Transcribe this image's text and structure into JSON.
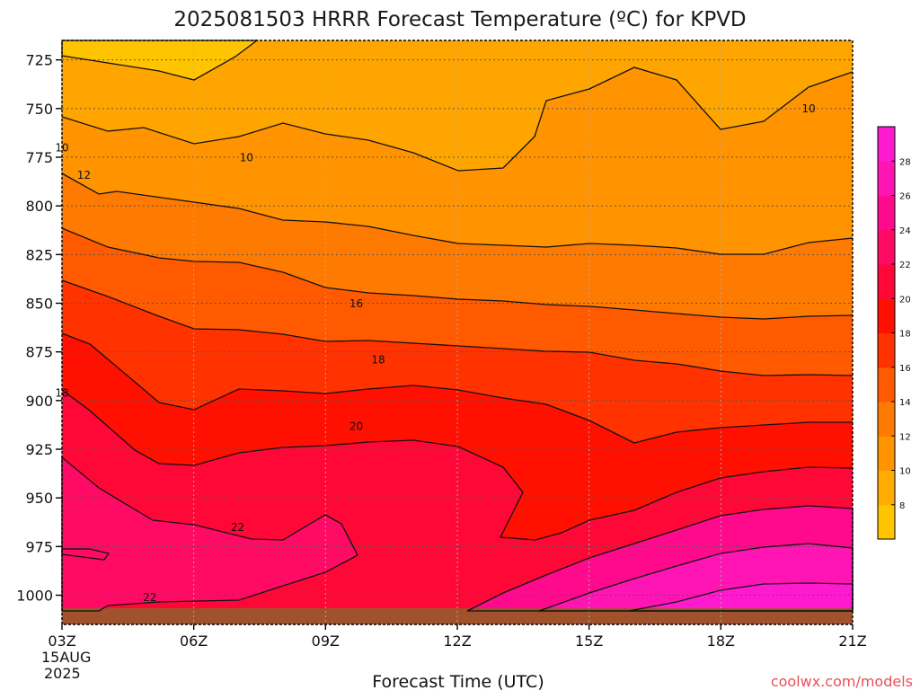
{
  "title": "2025081503 HRRR Forecast Temperature (ºC) for KPVD",
  "credit": "coolwx.com/models",
  "chart_data": {
    "type": "contour",
    "xlabel": "Forecast Time (UTC)",
    "ylabel": "",
    "x_ticks": [
      "03Z",
      "06Z",
      "09Z",
      "12Z",
      "15Z",
      "18Z",
      "21Z"
    ],
    "x_first_tick_date": [
      "15AUG",
      "2025"
    ],
    "x_hours": [
      3,
      21
    ],
    "y_ticks": [
      725,
      750,
      775,
      800,
      825,
      850,
      875,
      900,
      925,
      950,
      975,
      1000
    ],
    "y_range_hpa": [
      715,
      1015
    ],
    "grid": "dotted",
    "colorbar": {
      "ticks": [
        8,
        10,
        12,
        14,
        16,
        18,
        20,
        22,
        24,
        26,
        28
      ],
      "colors": [
        "#ffc400",
        "#ffab00",
        "#ff9400",
        "#ff7a00",
        "#ff5a00",
        "#ff3200",
        "#ff1000",
        "#ff0838",
        "#ff0a64",
        "#ff0a8c",
        "#ff14b4",
        "#ff1ad0"
      ]
    },
    "contour_labels": [
      {
        "text": "10",
        "t": 3.0,
        "p": 772
      },
      {
        "text": "10",
        "t": 7.2,
        "p": 777
      },
      {
        "text": "10",
        "t": 20.0,
        "p": 752
      },
      {
        "text": "12",
        "t": 3.5,
        "p": 786
      },
      {
        "text": "16",
        "t": 9.7,
        "p": 852
      },
      {
        "text": "18",
        "t": 10.2,
        "p": 881
      },
      {
        "text": "18",
        "t": 3.0,
        "p": 898
      },
      {
        "text": "20",
        "t": 9.7,
        "p": 915
      },
      {
        "text": "22",
        "t": 7.0,
        "p": 967
      },
      {
        "text": "22",
        "t": 5.0,
        "p": 1003
      }
    ]
  }
}
